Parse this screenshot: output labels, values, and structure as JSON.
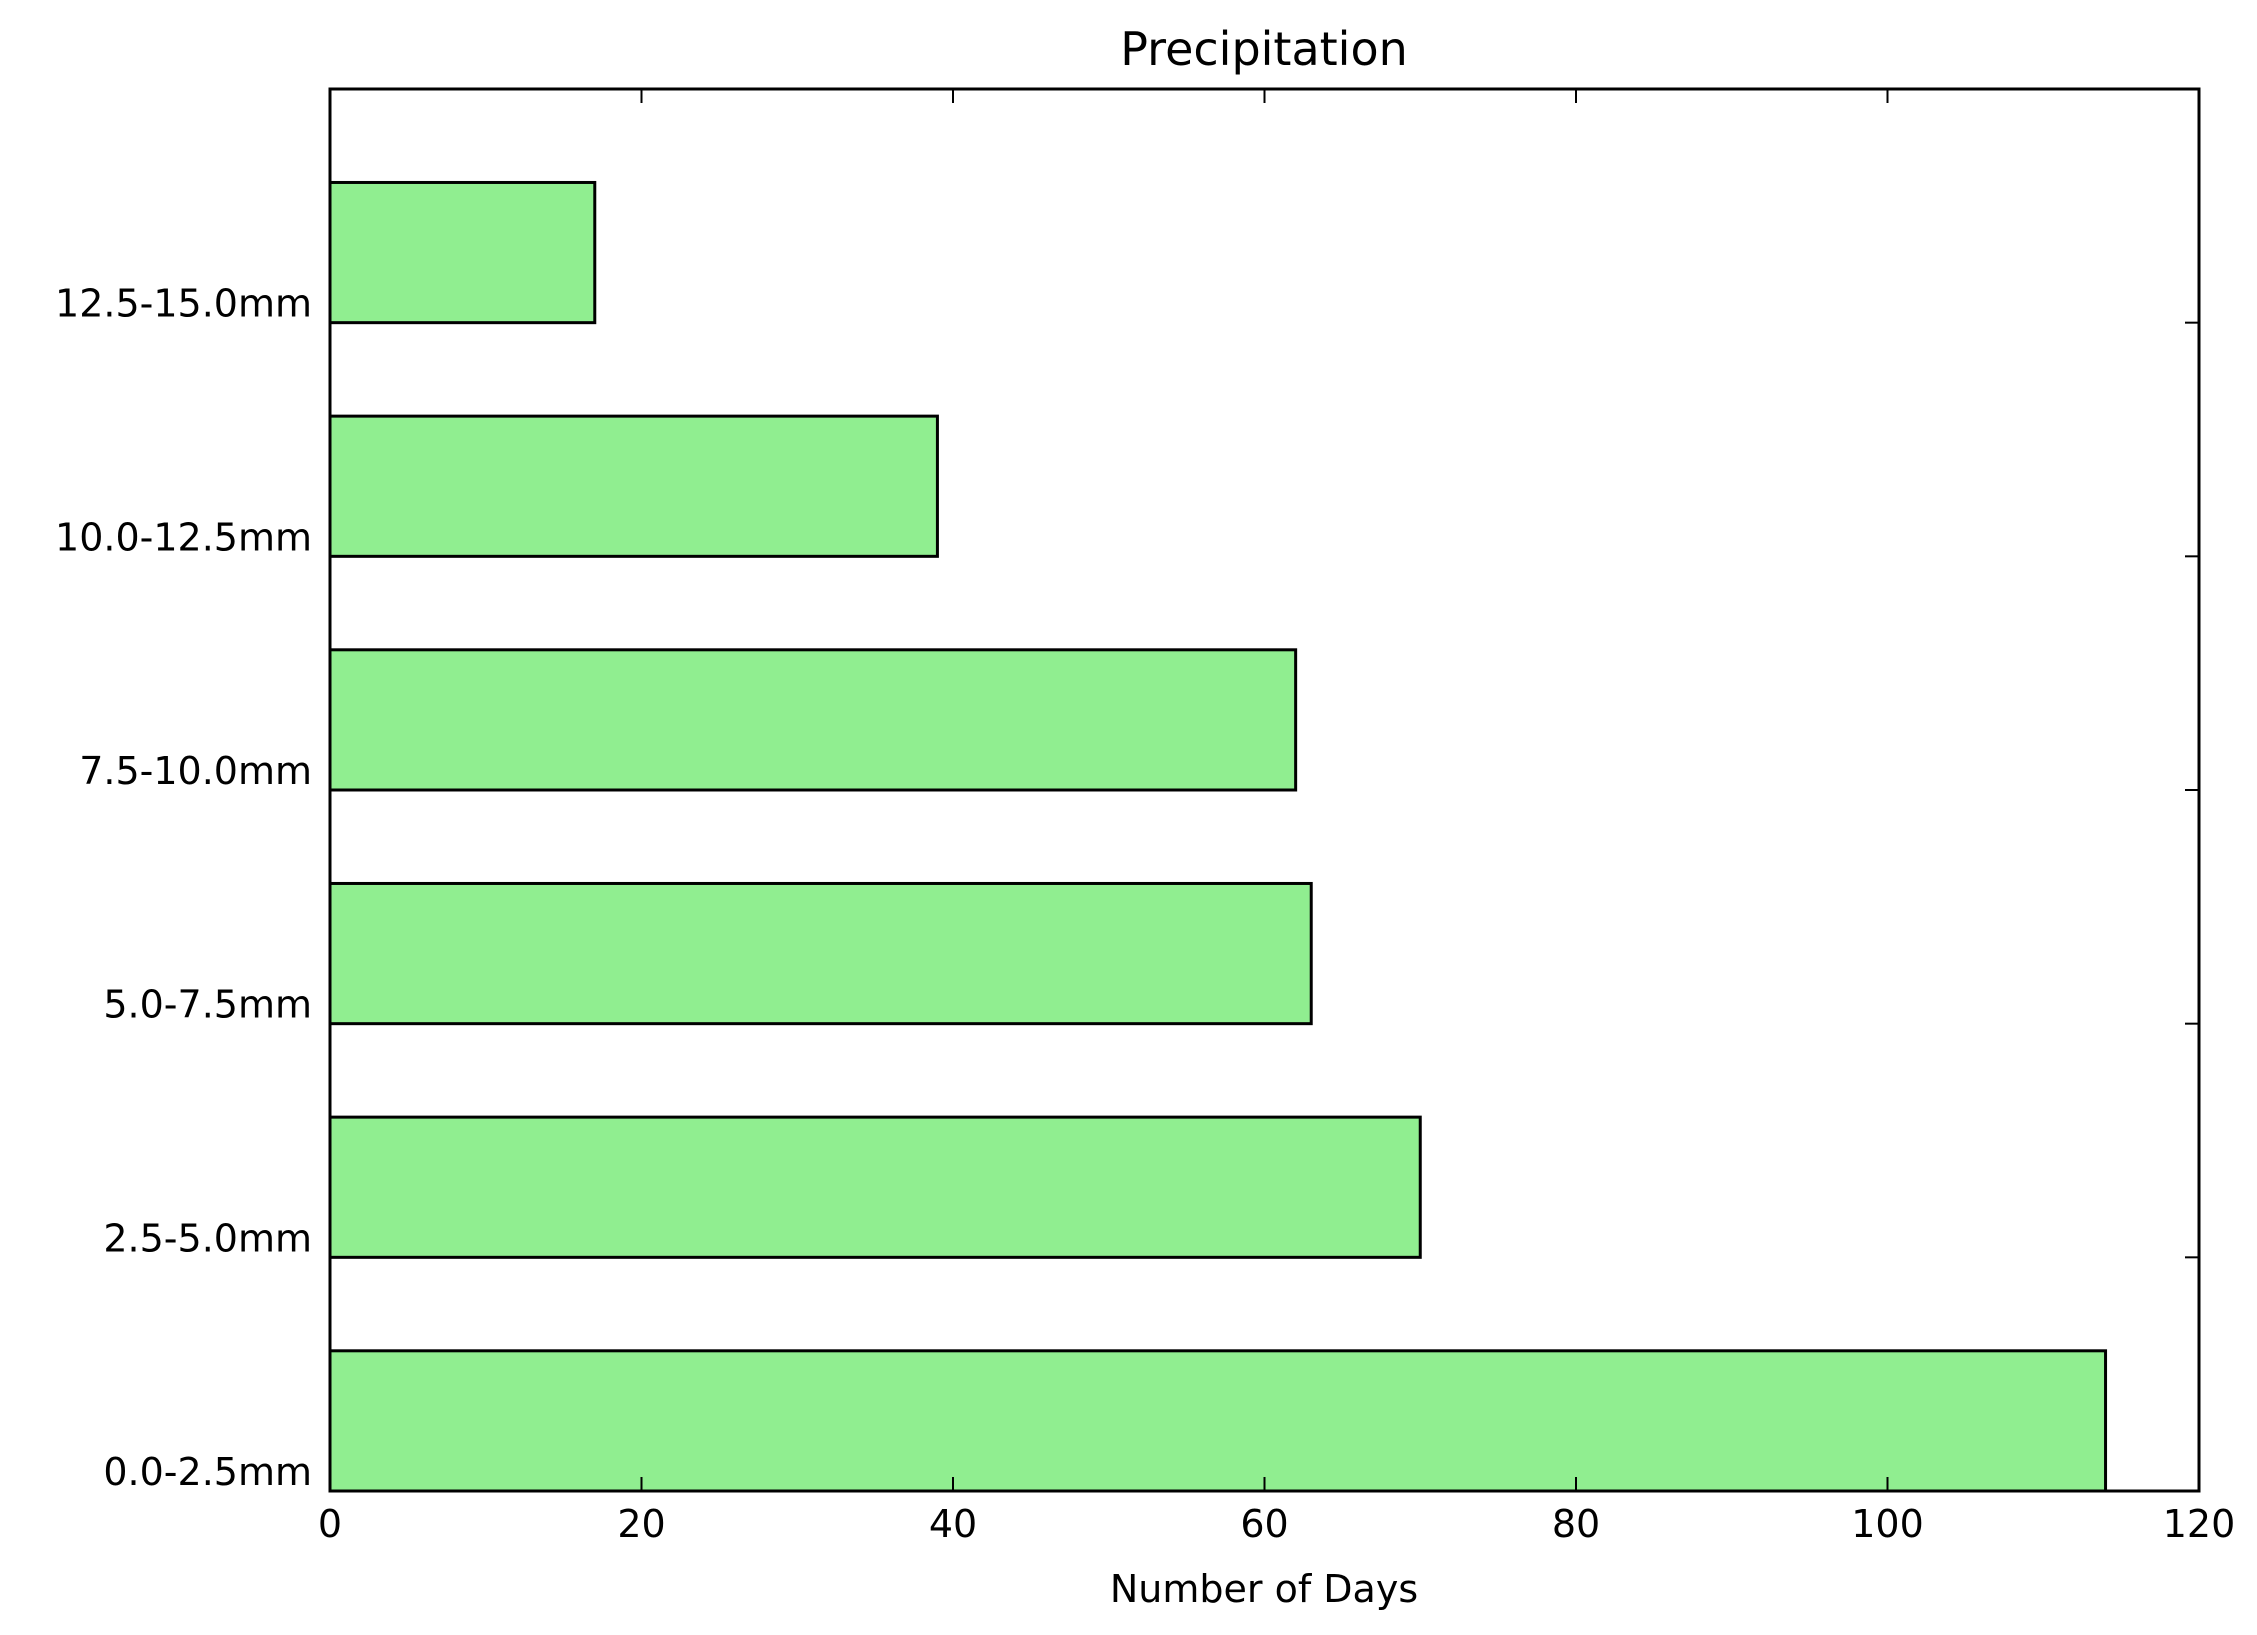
{
  "chart_data": {
    "type": "bar",
    "orientation": "horizontal",
    "title": "Precipitation",
    "xlabel": "Number of Days",
    "ylabel": "",
    "categories": [
      "0.0-2.5mm",
      "2.5-5.0mm",
      "5.0-7.5mm",
      "7.5-10.0mm",
      "10.0-12.5mm",
      "12.5-15.0mm"
    ],
    "values": [
      114,
      70,
      63,
      62,
      39,
      17
    ],
    "xlim": [
      0,
      120
    ],
    "xticks": [
      "0",
      "20",
      "40",
      "60",
      "80",
      "100",
      "120"
    ],
    "grid": false,
    "bar_color": "#90ee90",
    "edge_color": "#000000"
  }
}
